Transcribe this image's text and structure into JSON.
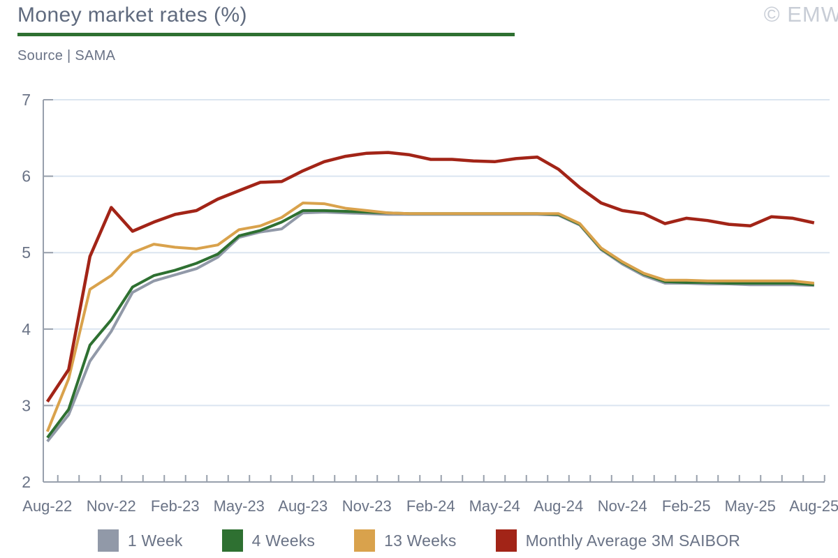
{
  "header": {
    "title": "Money market rates (%)",
    "source_label": "Source | SAMA",
    "copyright": "© EMW"
  },
  "chart_data": {
    "type": "line",
    "x": [
      "Aug-22",
      "Sep-22",
      "Oct-22",
      "Nov-22",
      "Dec-22",
      "Jan-23",
      "Feb-23",
      "Mar-23",
      "Apr-23",
      "May-23",
      "Jun-23",
      "Jul-23",
      "Aug-23",
      "Sep-23",
      "Oct-23",
      "Nov-23",
      "Dec-23",
      "Jan-24",
      "Feb-24",
      "Mar-24",
      "Apr-24",
      "May-24",
      "Jun-24",
      "Jul-24",
      "Aug-24",
      "Sep-24",
      "Oct-24",
      "Nov-24",
      "Dec-24",
      "Jan-25",
      "Feb-25",
      "Mar-25",
      "Apr-25",
      "May-25",
      "Jun-25",
      "Jul-25",
      "Aug-25"
    ],
    "series": [
      {
        "name": "1 Week",
        "color": "#9199A8",
        "values": [
          2.53,
          2.88,
          3.58,
          3.97,
          4.48,
          4.63,
          4.71,
          4.79,
          4.94,
          5.2,
          5.27,
          5.31,
          5.52,
          5.53,
          5.52,
          5.51,
          5.5,
          5.5,
          5.5,
          5.5,
          5.5,
          5.5,
          5.5,
          5.5,
          5.49,
          5.36,
          5.04,
          4.85,
          4.7,
          4.6,
          4.6,
          4.59,
          4.59,
          4.58,
          4.58,
          4.58,
          4.57
        ]
      },
      {
        "name": "4 Weeks",
        "color": "#2E7031",
        "values": [
          2.58,
          2.95,
          3.79,
          4.12,
          4.55,
          4.7,
          4.77,
          4.86,
          4.98,
          5.22,
          5.29,
          5.4,
          5.55,
          5.55,
          5.54,
          5.53,
          5.52,
          5.51,
          5.51,
          5.51,
          5.51,
          5.51,
          5.51,
          5.51,
          5.5,
          5.37,
          5.05,
          4.87,
          4.72,
          4.62,
          4.61,
          4.61,
          4.6,
          4.6,
          4.6,
          4.6,
          4.58
        ]
      },
      {
        "name": "13 Weeks",
        "color": "#D9A24C",
        "values": [
          2.66,
          3.35,
          4.52,
          4.7,
          5.0,
          5.11,
          5.07,
          5.05,
          5.1,
          5.3,
          5.35,
          5.46,
          5.65,
          5.64,
          5.58,
          5.55,
          5.52,
          5.51,
          5.51,
          5.51,
          5.51,
          5.51,
          5.51,
          5.51,
          5.51,
          5.38,
          5.06,
          4.88,
          4.73,
          4.64,
          4.64,
          4.63,
          4.63,
          4.63,
          4.63,
          4.63,
          4.6
        ]
      },
      {
        "name": "Monthly Average 3M SAIBOR",
        "color": "#A22417",
        "values": [
          3.05,
          3.47,
          4.95,
          5.59,
          5.28,
          5.4,
          5.5,
          5.55,
          5.7,
          5.81,
          5.92,
          5.93,
          6.07,
          6.19,
          6.26,
          6.3,
          6.31,
          6.28,
          6.22,
          6.22,
          6.2,
          6.19,
          6.23,
          6.25,
          6.09,
          5.85,
          5.65,
          5.55,
          5.51,
          5.38,
          5.45,
          5.42,
          5.37,
          5.35,
          5.47,
          5.45,
          5.39
        ]
      }
    ],
    "title": "Money market rates (%)",
    "xlabel": "",
    "ylabel": "",
    "ylim": [
      2,
      7
    ],
    "yticks": [
      2,
      3,
      4,
      5,
      6,
      7
    ],
    "xtick_labels": [
      "Aug-22",
      "Nov-22",
      "Feb-23",
      "May-23",
      "Aug-23",
      "Nov-23",
      "Feb-24",
      "May-24",
      "Aug-24",
      "Nov-24",
      "Feb-25",
      "May-25",
      "Aug-25"
    ],
    "xtick_every": 3,
    "grid": "horizontal",
    "legend_position": "bottom",
    "styling": {
      "grid_color": "#DBE5F0",
      "axis_color": "#98A0AC",
      "label_color": "#6A7386",
      "title_underline_color": "#2E7031"
    }
  }
}
